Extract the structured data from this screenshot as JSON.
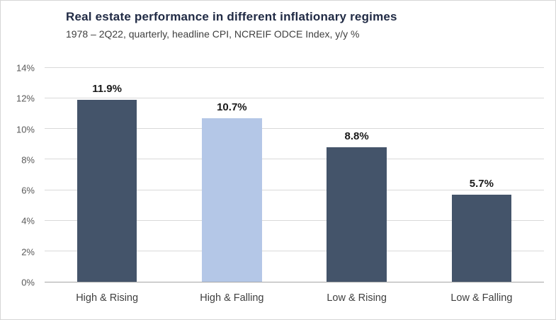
{
  "header": {
    "title": "Real estate performance in different inflationary regimes",
    "subtitle": "1978 – 2Q22, quarterly, headline CPI, NCREIF ODCE Index, y/y %"
  },
  "chart_data": {
    "type": "bar",
    "title": "Real estate performance in different inflationary regimes",
    "subtitle": "1978 – 2Q22, quarterly, headline CPI, NCREIF ODCE Index, y/y %",
    "categories": [
      "High & Rising",
      "High & Falling",
      "Low & Rising",
      "Low & Falling"
    ],
    "values": [
      11.9,
      10.7,
      8.8,
      5.7
    ],
    "value_labels": [
      "11.9%",
      "10.7%",
      "8.8%",
      "5.7%"
    ],
    "xlabel": "",
    "ylabel": "",
    "ylim": [
      0,
      14
    ],
    "ytick_step": 2,
    "ytick_labels": [
      "0%",
      "2%",
      "4%",
      "6%",
      "8%",
      "10%",
      "12%",
      "14%"
    ],
    "grid": true,
    "legend": "none",
    "colors": {
      "bar_default": "#44546A",
      "bar_highlight": "#B4C7E7",
      "bar_colors": [
        "#44546A",
        "#B4C7E7",
        "#44546A",
        "#44546A"
      ],
      "title_text": "#212B45",
      "subtitle_text": "#404040",
      "gridline": "#D9D9D9",
      "axis_line": "#A6A6A6"
    }
  }
}
